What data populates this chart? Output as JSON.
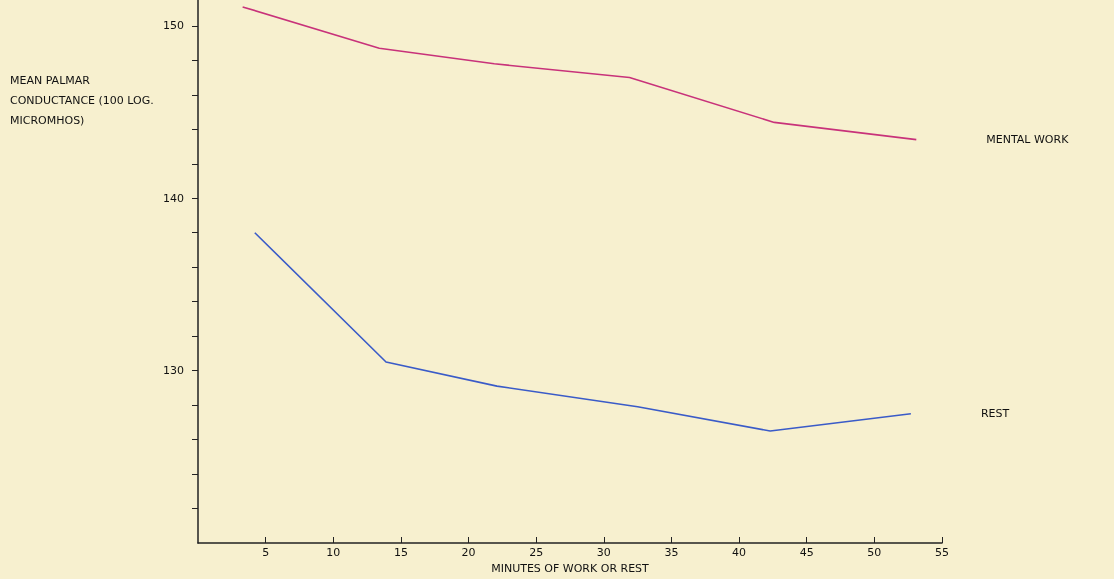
{
  "chart_data": {
    "type": "line",
    "ylabel": "MEAN PALMAR CONDUCTANCE (100 LOG. MICROMHOS)",
    "xlabel": "MINUTES OF WORK OR REST",
    "series": [
      {
        "name": "MENTAL WORK",
        "color": "#c8327a",
        "x": [
          3.3,
          13.4,
          21.9,
          31.9,
          42.6,
          53.1
        ],
        "values": [
          151.1,
          148.7,
          147.8,
          147.0,
          144.4,
          143.4
        ]
      },
      {
        "name": "REST",
        "color": "#3a5bc8",
        "x": [
          4.2,
          13.9,
          22.1,
          32.5,
          42.3,
          52.7
        ],
        "values": [
          138.0,
          130.5,
          129.1,
          127.9,
          126.5,
          127.5
        ]
      }
    ],
    "xlim": [
      0,
      55
    ],
    "xticks": [
      5,
      10,
      15,
      20,
      25,
      30,
      35,
      40,
      45,
      50,
      55
    ],
    "ylim": [
      120,
      151.5
    ],
    "yticks": [
      {
        "value": 122,
        "label": null
      },
      {
        "value": 124,
        "label": null
      },
      {
        "value": 126,
        "label": null
      },
      {
        "value": 128,
        "label": null
      },
      130,
      {
        "value": 132,
        "label": null
      },
      {
        "value": 134,
        "label": null
      },
      {
        "value": 136,
        "label": null
      },
      {
        "value": 138,
        "label": null
      },
      140,
      {
        "value": 142,
        "label": null
      },
      {
        "value": 144,
        "label": null
      },
      {
        "value": 146,
        "label": null
      },
      {
        "value": 148,
        "label": null
      },
      150
    ],
    "grid": false,
    "legend": false,
    "marker": "none",
    "line_style": "solid"
  }
}
